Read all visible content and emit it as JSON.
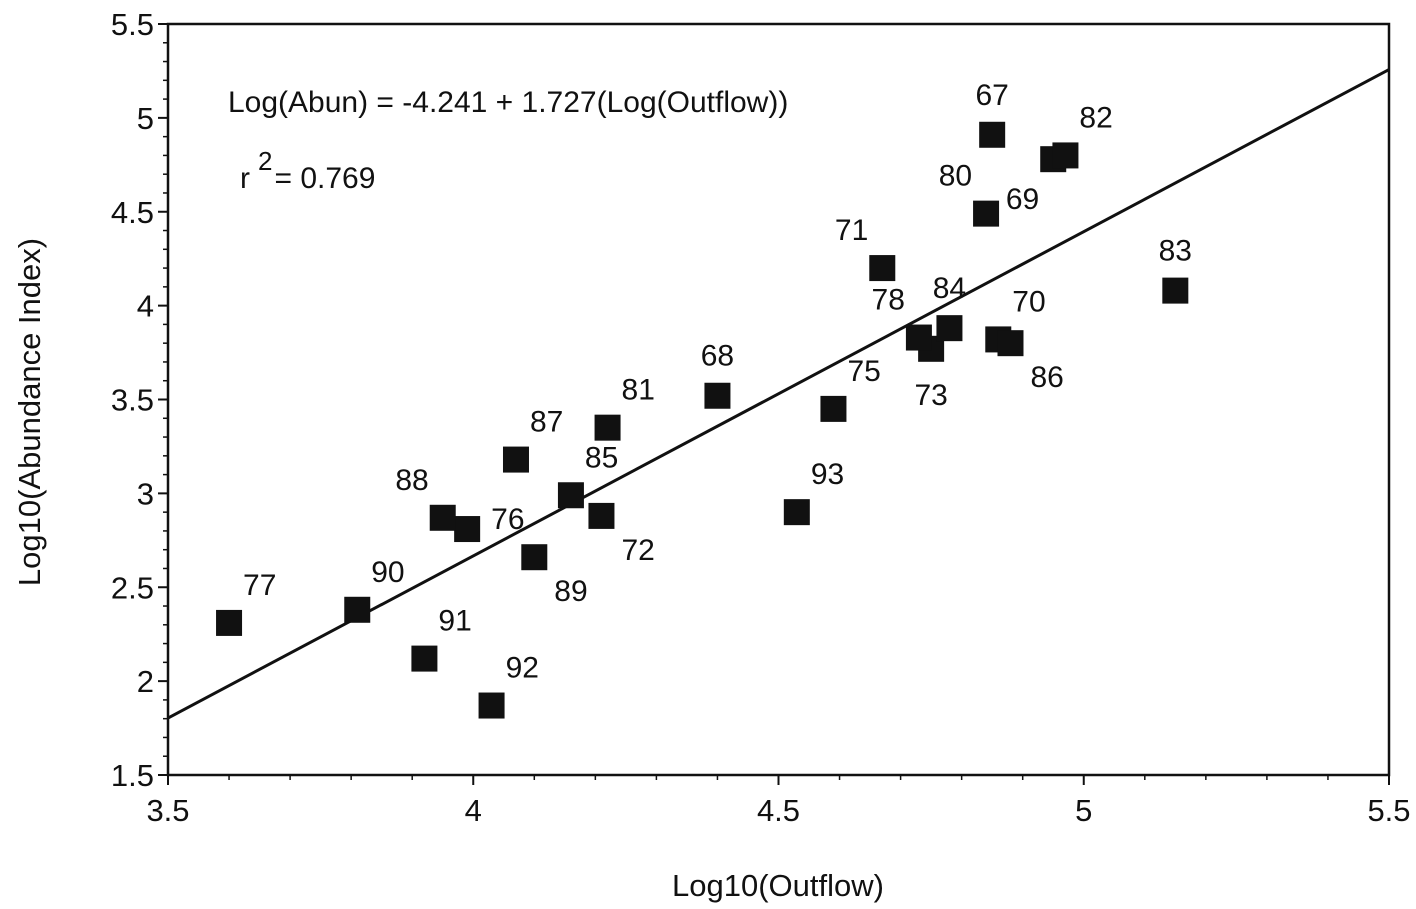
{
  "chart_data": {
    "type": "scatter",
    "xlabel": "Log10(Outflow)",
    "ylabel": "Log10(Abundance Index)",
    "xlim": [
      3.5,
      5.5
    ],
    "ylim": [
      1.5,
      5.5
    ],
    "x_ticks": [
      "3.5",
      "4",
      "4.5",
      "5",
      "5.5"
    ],
    "y_ticks": [
      "1.5",
      "2",
      "2.5",
      "3",
      "3.5",
      "4",
      "4.5",
      "5",
      "5.5"
    ],
    "grid": false,
    "legend": "none",
    "marker": "square",
    "colors": {
      "marker": "#111111",
      "line": "#111111",
      "axes": "#111111"
    },
    "regression": {
      "intercept": -4.241,
      "slope": 1.727,
      "equation": "Log(Abun) = -4.241 + 1.727(Log(Outflow))",
      "r2_prefix": "r",
      "r2_exponent": "2",
      "r2_value": "=  0.769"
    },
    "points": [
      {
        "label": "67",
        "x": 4.85,
        "y": 4.91,
        "label_pos": "above"
      },
      {
        "label": "68",
        "x": 4.4,
        "y": 3.52,
        "label_pos": "above"
      },
      {
        "label": "69",
        "x": 4.95,
        "y": 4.78,
        "label_pos": "below-left"
      },
      {
        "label": "70",
        "x": 4.86,
        "y": 3.82,
        "label_pos": "above-right"
      },
      {
        "label": "71",
        "x": 4.67,
        "y": 4.2,
        "label_pos": "above-left"
      },
      {
        "label": "72",
        "x": 4.21,
        "y": 2.88,
        "label_pos": "below-right"
      },
      {
        "label": "73",
        "x": 4.75,
        "y": 3.77,
        "label_pos": "below"
      },
      {
        "label": "75",
        "x": 4.59,
        "y": 3.45,
        "label_pos": "above-right"
      },
      {
        "label": "76",
        "x": 3.99,
        "y": 2.81,
        "label_pos": "right"
      },
      {
        "label": "77",
        "x": 3.6,
        "y": 2.31,
        "label_pos": "above-right"
      },
      {
        "label": "78",
        "x": 4.73,
        "y": 3.83,
        "label_pos": "above-left"
      },
      {
        "label": "80",
        "x": 4.84,
        "y": 4.49,
        "label_pos": "above-left"
      },
      {
        "label": "81",
        "x": 4.22,
        "y": 3.35,
        "label_pos": "above-right"
      },
      {
        "label": "82",
        "x": 4.97,
        "y": 4.8,
        "label_pos": "above-right"
      },
      {
        "label": "83",
        "x": 5.15,
        "y": 4.08,
        "label_pos": "above"
      },
      {
        "label": "84",
        "x": 4.78,
        "y": 3.88,
        "label_pos": "above"
      },
      {
        "label": "85",
        "x": 4.16,
        "y": 2.99,
        "label_pos": "above-right"
      },
      {
        "label": "86",
        "x": 4.88,
        "y": 3.8,
        "label_pos": "below-right"
      },
      {
        "label": "87",
        "x": 4.07,
        "y": 3.18,
        "label_pos": "above-right"
      },
      {
        "label": "88",
        "x": 3.95,
        "y": 2.87,
        "label_pos": "above-left"
      },
      {
        "label": "89",
        "x": 4.1,
        "y": 2.66,
        "label_pos": "below-right"
      },
      {
        "label": "90",
        "x": 3.81,
        "y": 2.38,
        "label_pos": "above-right"
      },
      {
        "label": "91",
        "x": 3.92,
        "y": 2.12,
        "label_pos": "above-right"
      },
      {
        "label": "92",
        "x": 4.03,
        "y": 1.87,
        "label_pos": "above-right"
      },
      {
        "label": "93",
        "x": 4.53,
        "y": 2.9,
        "label_pos": "above-right"
      }
    ]
  }
}
